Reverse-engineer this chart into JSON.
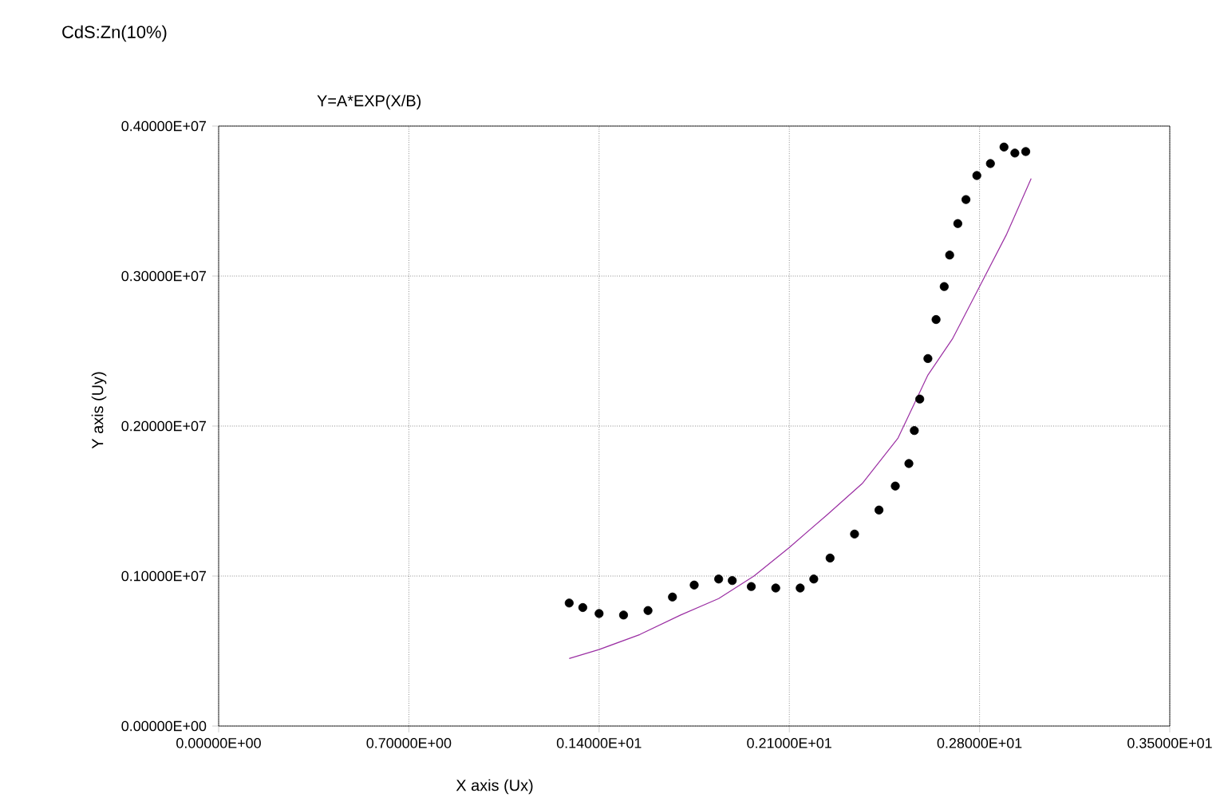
{
  "chart_data": {
    "type": "scatter",
    "title": "CdS:Zn(10%)",
    "subtitle": "Y=A*EXP(X/B)",
    "xlabel": "X axis (Ux)",
    "ylabel": "Y axis (Uy)",
    "xlim": [
      0,
      3.5
    ],
    "ylim": [
      0,
      4000000
    ],
    "xticks": [
      {
        "value": 0,
        "label": "0.00000E+00"
      },
      {
        "value": 0.7,
        "label": "0.70000E+00"
      },
      {
        "value": 1.4,
        "label": "0.14000E+01"
      },
      {
        "value": 2.1,
        "label": "0.21000E+01"
      },
      {
        "value": 2.8,
        "label": "0.28000E+01"
      },
      {
        "value": 3.5,
        "label": "0.35000E+01"
      }
    ],
    "yticks": [
      {
        "value": 0,
        "label": "0.00000E+00"
      },
      {
        "value": 1000000,
        "label": "0.10000E+07"
      },
      {
        "value": 2000000,
        "label": "0.20000E+07"
      },
      {
        "value": 3000000,
        "label": "0.30000E+07"
      },
      {
        "value": 4000000,
        "label": "0.40000E+07"
      }
    ],
    "grid": true,
    "series": [
      {
        "marker": "circle",
        "color": "#000000",
        "x": [
          1.29,
          1.34,
          1.4,
          1.49,
          1.58,
          1.67,
          1.75,
          1.84,
          1.89,
          1.96,
          2.05,
          2.14,
          2.19,
          2.25,
          2.34,
          2.43,
          2.49,
          2.54,
          2.56,
          2.58,
          2.61,
          2.64,
          2.67,
          2.69,
          2.72,
          2.75,
          2.79,
          2.84,
          2.89,
          2.93,
          2.97
        ],
        "values": [
          820000,
          790000,
          750000,
          740000,
          770000,
          860000,
          940000,
          980000,
          970000,
          930000,
          920000,
          920000,
          980000,
          1120000,
          1280000,
          1440000,
          1600000,
          1750000,
          1970000,
          2180000,
          2450000,
          2710000,
          2930000,
          3140000,
          3350000,
          3510000,
          3670000,
          3750000,
          3860000,
          3820000,
          3830000
        ]
      },
      {
        "type": "line",
        "marker": "none",
        "color": "#9b2fa3",
        "x": [
          1.29,
          1.4,
          1.55,
          1.7,
          1.84,
          1.97,
          2.1,
          2.24,
          2.37,
          2.5,
          2.61,
          2.7,
          2.8,
          2.9,
          2.99
        ],
        "values": [
          450000,
          510000,
          610000,
          740000,
          850000,
          1000000,
          1190000,
          1410000,
          1620000,
          1920000,
          2340000,
          2580000,
          2930000,
          3280000,
          3650000
        ]
      }
    ]
  }
}
